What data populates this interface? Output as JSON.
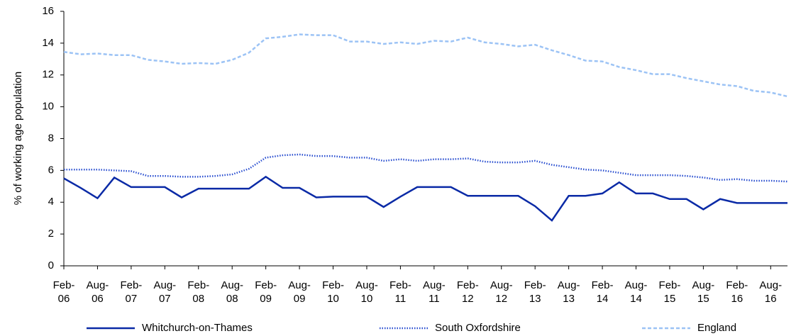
{
  "chart_data": {
    "type": "line",
    "y_label": "% of working age population",
    "categories": [
      "Feb-06",
      null,
      "Aug-06",
      null,
      "Feb-07",
      null,
      "Aug-07",
      null,
      "Feb-08",
      null,
      "Aug-08",
      null,
      "Feb-09",
      null,
      "Aug-09",
      null,
      "Feb-10",
      null,
      "Aug-10",
      null,
      "Feb-11",
      null,
      "Aug-11",
      null,
      "Feb-12",
      null,
      "Aug-12",
      null,
      "Feb-13",
      null,
      "Aug-13",
      null,
      "Feb-14",
      null,
      "Aug-14",
      null,
      "Feb-15",
      null,
      "Aug-15",
      null,
      "Feb-16",
      null,
      "Aug-16",
      null
    ],
    "series": [
      {
        "name": "Whitchurch-on-Thames",
        "color": "#0a2aa6",
        "dash": "solid",
        "values": [
          5.5,
          4.9,
          4.25,
          5.55,
          4.95,
          4.95,
          4.95,
          4.3,
          4.85,
          4.85,
          4.85,
          4.85,
          5.6,
          4.9,
          4.9,
          4.3,
          4.35,
          4.35,
          4.35,
          3.7,
          4.35,
          4.95,
          4.95,
          4.95,
          4.4,
          4.4,
          4.4,
          4.4,
          3.75,
          2.85,
          4.4,
          4.4,
          4.55,
          5.25,
          4.55,
          4.55,
          4.2,
          4.2,
          3.55,
          4.2,
          3.95,
          3.95,
          3.95,
          3.95
        ]
      },
      {
        "name": "South Oxfordshire",
        "color": "#2a4fd0",
        "dash": "dotted",
        "values": [
          6.05,
          6.05,
          6.05,
          6.0,
          5.95,
          5.65,
          5.65,
          5.6,
          5.6,
          5.65,
          5.75,
          6.1,
          6.8,
          6.95,
          7.0,
          6.9,
          6.9,
          6.8,
          6.8,
          6.6,
          6.7,
          6.6,
          6.7,
          6.7,
          6.75,
          6.55,
          6.5,
          6.5,
          6.6,
          6.35,
          6.2,
          6.05,
          6.0,
          5.85,
          5.7,
          5.7,
          5.7,
          5.65,
          5.55,
          5.4,
          5.45,
          5.35,
          5.35,
          5.3
        ]
      },
      {
        "name": "England",
        "color": "#9cc3f5",
        "dash": "dashed",
        "values": [
          13.45,
          13.3,
          13.35,
          13.25,
          13.25,
          12.95,
          12.85,
          12.7,
          12.75,
          12.7,
          12.95,
          13.4,
          14.3,
          14.4,
          14.55,
          14.5,
          14.5,
          14.1,
          14.1,
          13.95,
          14.05,
          13.95,
          14.15,
          14.1,
          14.35,
          14.05,
          13.95,
          13.8,
          13.9,
          13.55,
          13.25,
          12.9,
          12.85,
          12.5,
          12.3,
          12.05,
          12.05,
          11.8,
          11.6,
          11.4,
          11.3,
          11.0,
          10.9,
          10.65
        ]
      }
    ],
    "ylim": [
      0,
      16
    ],
    "yticks": [
      0,
      2,
      4,
      6,
      8,
      10,
      12,
      14,
      16
    ],
    "grid": false,
    "legend": "bottom"
  }
}
